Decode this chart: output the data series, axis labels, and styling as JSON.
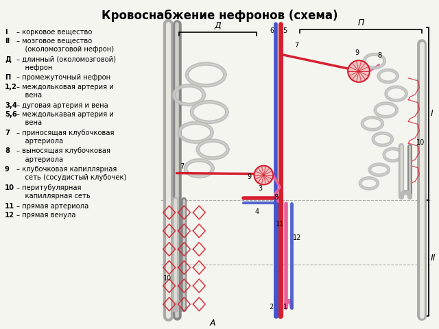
{
  "title": "Кровоснабжение нефронов (схема)",
  "title_fontsize": 12,
  "title_fontweight": "bold",
  "bg_color": "#f5f5f0",
  "legend_items": [
    [
      "I",
      "– корковое вещество"
    ],
    [
      "II",
      "– мозговое вещество\n    (околомозговой нефрон)"
    ],
    [
      "Д",
      "– длинный (околомозговой)\n    нефрон"
    ],
    [
      "П",
      "– промежуточный нефрон"
    ],
    [
      "1,2",
      "– междольковая артерия и\n    вена"
    ],
    [
      "3,4",
      "– дуговая артерия и вена"
    ],
    [
      "5,6",
      "– междолькавая артерия и\n    вена"
    ],
    [
      "7",
      "– приносящая клубочковая\n    артериола"
    ],
    [
      "8",
      "– выносящая клубочковая\n    артериола"
    ],
    [
      "9",
      "– клубочковая капиллярная\n    сеть (сосудистый клубочек)"
    ],
    [
      "10",
      "– перитубулярная\n    капиллярная сеть"
    ],
    [
      "11",
      "– прямая артериола"
    ],
    [
      "12",
      "– прямая венула"
    ]
  ],
  "red_color": "#d42030",
  "pink_color": "#e8609a",
  "magenta_color": "#cc2288",
  "blue_color": "#4455cc",
  "purple_color": "#7744aa",
  "gray_color": "#aaaaaa",
  "gray_tube": "#b8b8b8",
  "dark_gray": "#888888",
  "dashed_color": "#999999",
  "label_D": "Д",
  "label_P": "П",
  "label_I": "I",
  "label_II": "II",
  "label_A": "А"
}
